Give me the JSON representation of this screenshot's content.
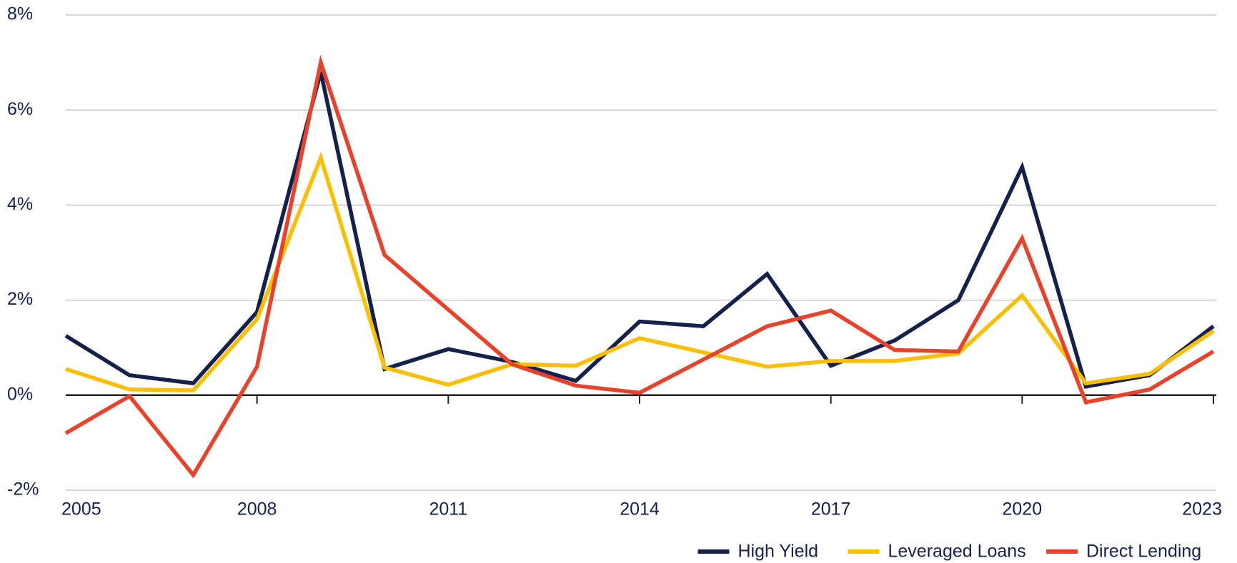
{
  "chart_data": {
    "type": "line",
    "categories": [
      "2005",
      null,
      null,
      "2008",
      null,
      null,
      "2011",
      null,
      null,
      "2014",
      null,
      null,
      "2017",
      null,
      null,
      "2020",
      null,
      null,
      "2023"
    ],
    "series": [
      {
        "name": "High Yield",
        "color": "#14214d",
        "values": [
          1.25,
          0.42,
          0.25,
          1.75,
          6.8,
          0.55,
          0.97,
          0.7,
          0.3,
          1.55,
          1.45,
          2.55,
          0.62,
          1.15,
          2.0,
          4.8,
          0.18,
          0.42,
          1.45
        ]
      },
      {
        "name": "Leveraged Loans",
        "color": "#fbbf00",
        "values": [
          0.55,
          0.12,
          0.1,
          1.6,
          5.0,
          0.58,
          0.22,
          0.65,
          0.62,
          1.2,
          0.9,
          0.6,
          0.72,
          0.72,
          0.88,
          2.1,
          0.25,
          0.45,
          1.35
        ]
      },
      {
        "name": "Direct Lending",
        "color": "#e8432a",
        "values": [
          -0.8,
          -0.02,
          -1.68,
          0.6,
          7.0,
          2.95,
          1.8,
          0.65,
          0.2,
          0.05,
          0.75,
          1.45,
          1.78,
          0.95,
          0.92,
          3.3,
          -0.15,
          0.12,
          0.92
        ]
      }
    ],
    "ylim": [
      -2,
      8
    ],
    "yticks": [
      {
        "value": -2,
        "label": "-2%"
      },
      {
        "value": 0,
        "label": "0%"
      },
      {
        "value": 2,
        "label": "2%"
      },
      {
        "value": 4,
        "label": "4%"
      },
      {
        "value": 6,
        "label": "6%"
      },
      {
        "value": 8,
        "label": "8%"
      }
    ],
    "grid": true,
    "legend": "bottom-right"
  }
}
